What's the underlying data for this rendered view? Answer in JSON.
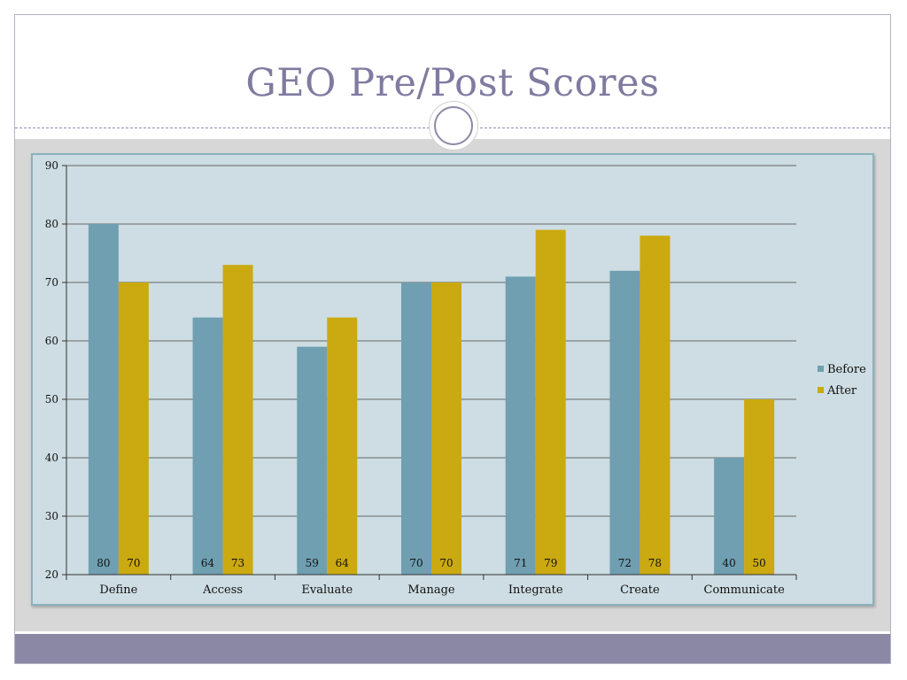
{
  "slide": {
    "title": "GEO Pre/Post Scores"
  },
  "colors": {
    "before": "#6f9fb1",
    "after": "#cba910",
    "title": "#7f7ba0",
    "footer": "#8b88a6",
    "chart_bg": "#cddde3",
    "gridline": "#666666"
  },
  "chart_data": {
    "type": "bar",
    "categories": [
      "Define",
      "Access",
      "Evaluate",
      "Manage",
      "Integrate",
      "Create",
      "Communicate"
    ],
    "series": [
      {
        "name": "Before",
        "values": [
          80,
          64,
          59,
          70,
          71,
          72,
          40
        ]
      },
      {
        "name": "After",
        "values": [
          70,
          73,
          64,
          70,
          79,
          78,
          50
        ]
      }
    ],
    "ylim": [
      20,
      90
    ],
    "yticks": [
      20,
      30,
      40,
      50,
      60,
      70,
      80,
      90
    ],
    "grid": true,
    "legend": "right"
  }
}
